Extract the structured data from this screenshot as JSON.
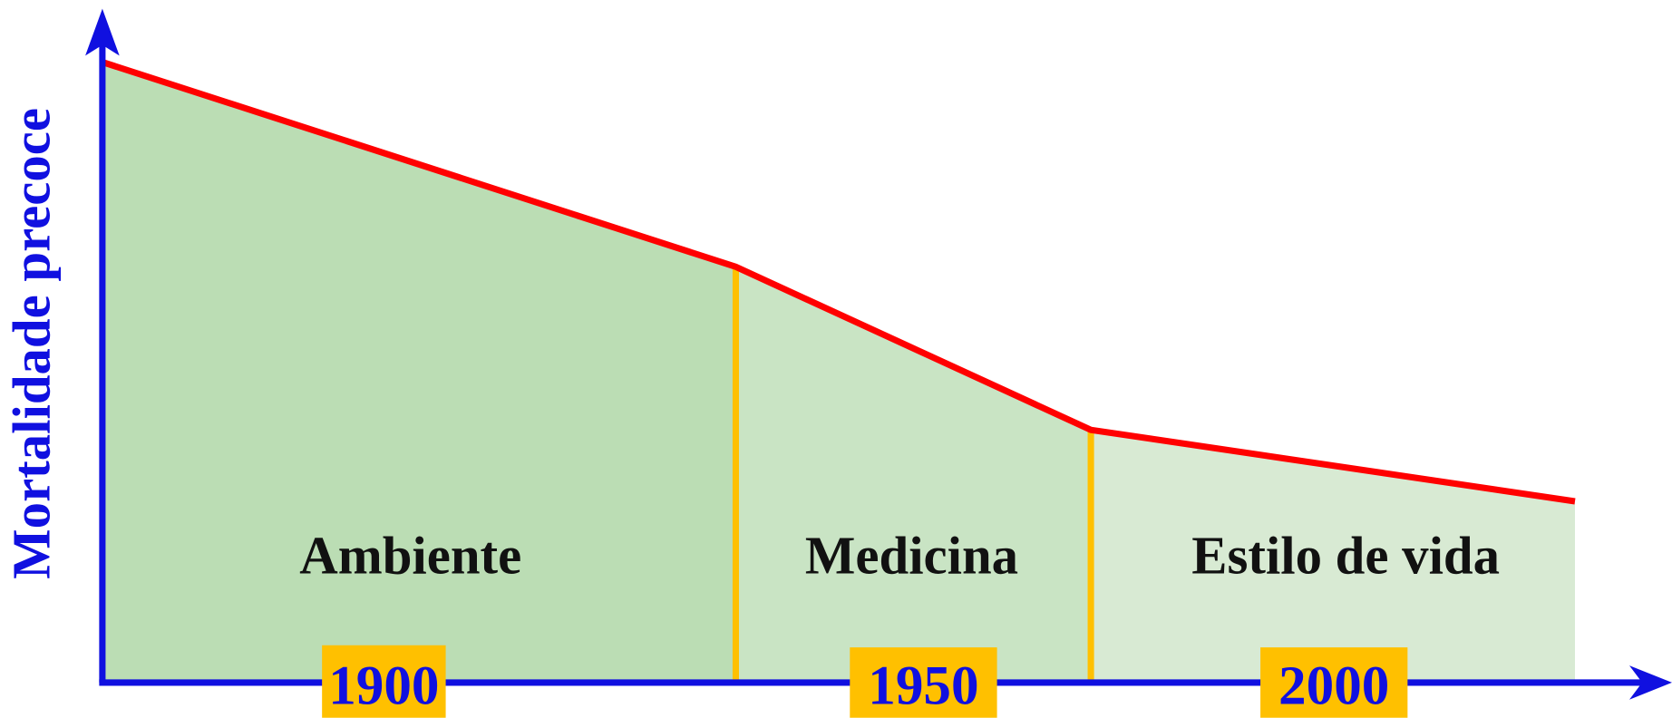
{
  "axis_label": "Mortalidade precoce",
  "regions": [
    {
      "label": "Ambiente",
      "year": "1900"
    },
    {
      "label": "Medicina",
      "year": "1950"
    },
    {
      "label": "Estilo de vida",
      "year": "2000"
    }
  ]
}
